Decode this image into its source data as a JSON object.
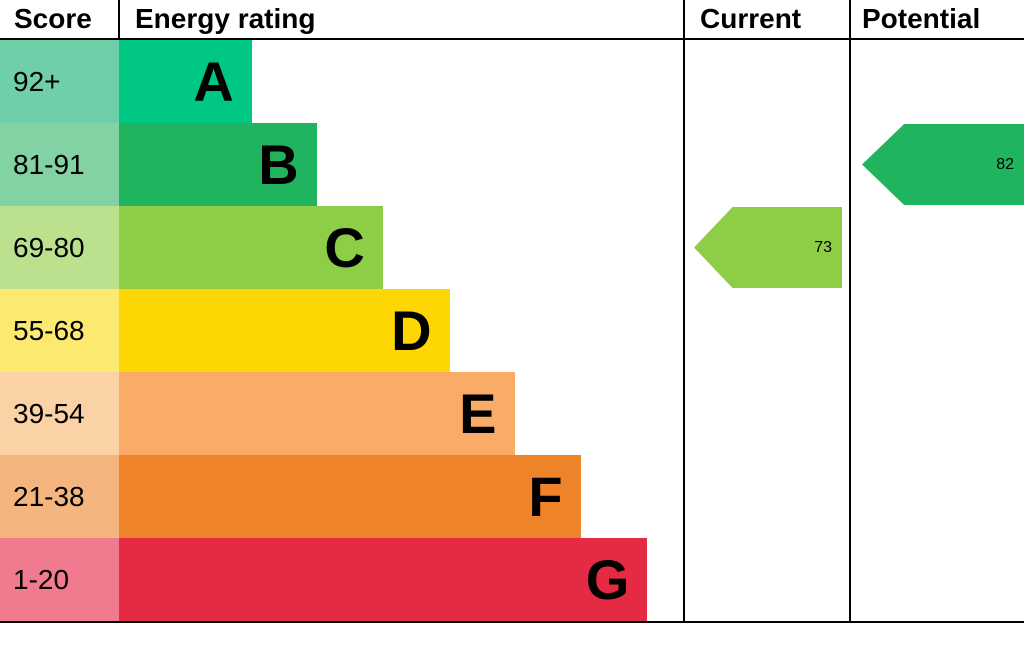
{
  "header": {
    "score": "Score",
    "energy_rating": "Energy rating",
    "current": "Current",
    "potential": "Potential"
  },
  "chart_data": {
    "type": "bar",
    "title": "Energy rating",
    "categories": [
      "A",
      "B",
      "C",
      "D",
      "E",
      "F",
      "G"
    ],
    "bands": [
      {
        "letter": "A",
        "range": "92+",
        "color": "#00c781",
        "tint": "#6fcfa9",
        "width_pct": 23.5
      },
      {
        "letter": "B",
        "range": "81-91",
        "color": "#21b45e",
        "tint": "#82d2a4",
        "width_pct": 35.0
      },
      {
        "letter": "C",
        "range": "69-80",
        "color": "#8dce46",
        "tint": "#bce18e",
        "width_pct": 46.7
      },
      {
        "letter": "D",
        "range": "55-68",
        "color": "#fed604",
        "tint": "#fcea70",
        "width_pct": 58.5
      },
      {
        "letter": "E",
        "range": "39-54",
        "color": "#f9ab67",
        "tint": "#fbd2a6",
        "width_pct": 70.0
      },
      {
        "letter": "F",
        "range": "21-38",
        "color": "#ee8329",
        "tint": "#f4b67e",
        "width_pct": 81.7
      },
      {
        "letter": "G",
        "range": "1-20",
        "color": "#e52a44",
        "tint": "#f27a8e",
        "width_pct": 93.5
      }
    ],
    "current": {
      "value": 73,
      "band_letter": "C",
      "band_index": 2,
      "color": "#8dce46"
    },
    "potential": {
      "value": 82,
      "band_letter": "B",
      "band_index": 1,
      "color": "#21b45e"
    }
  }
}
